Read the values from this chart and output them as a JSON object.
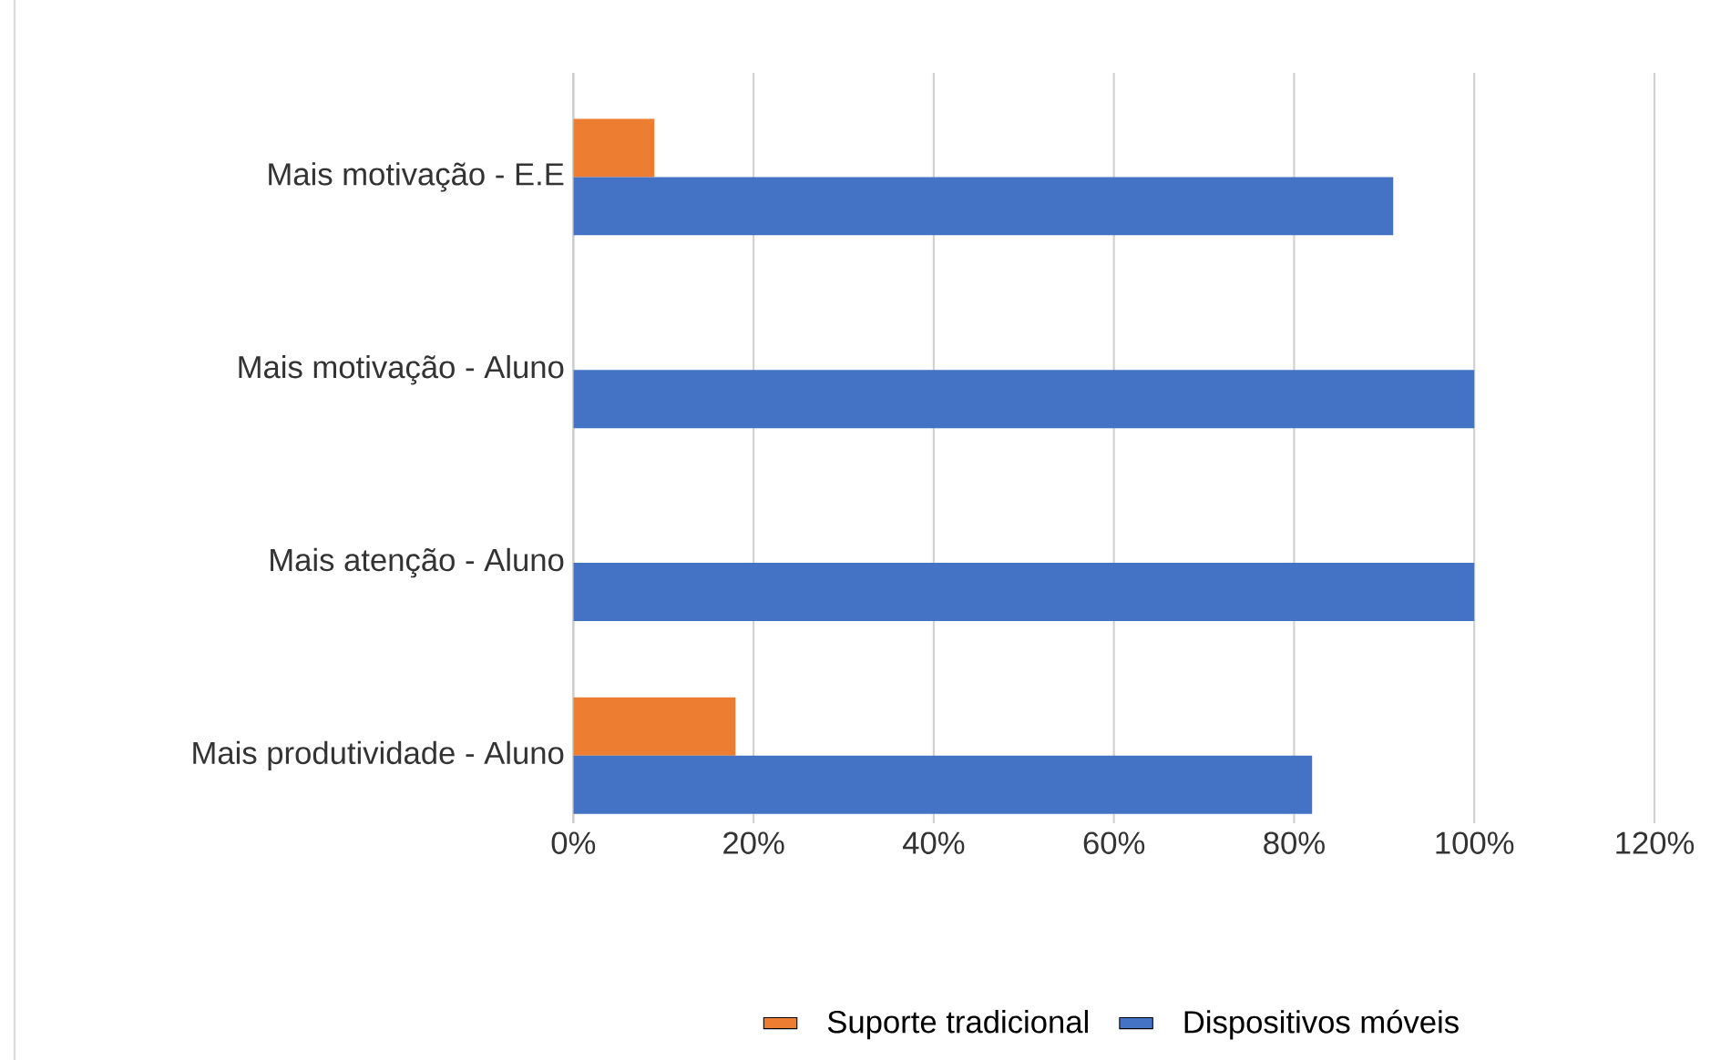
{
  "chart_data": {
    "type": "bar",
    "orientation": "horizontal",
    "categories": [
      "Mais motivação - E.E",
      "Mais motivação - Aluno",
      "Mais atenção - Aluno",
      "Mais produtividade - Aluno"
    ],
    "series": [
      {
        "name": "Suporte tradicional",
        "color": "#ed7d31",
        "values": [
          9,
          0,
          0,
          18
        ]
      },
      {
        "name": "Dispositivos móveis",
        "color": "#4472c4",
        "values": [
          91,
          100,
          100,
          82
        ]
      }
    ],
    "xlim": [
      0,
      120
    ],
    "xticks": [
      {
        "value": 0,
        "label": "0%"
      },
      {
        "value": 20,
        "label": "20%"
      },
      {
        "value": 40,
        "label": "40%"
      },
      {
        "value": 60,
        "label": "60%"
      },
      {
        "value": 80,
        "label": "80%"
      },
      {
        "value": 100,
        "label": "100%"
      },
      {
        "value": 120,
        "label": "120%"
      }
    ],
    "grid": "x",
    "legend": "bottom"
  }
}
